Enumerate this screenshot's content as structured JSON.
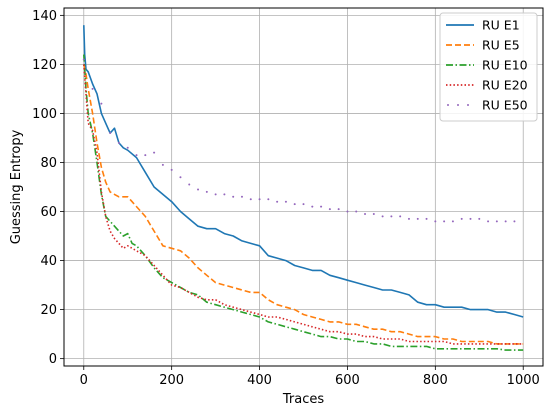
{
  "chart_data": {
    "type": "line",
    "title": "",
    "xlabel": "Traces",
    "ylabel": "Guessing Entropy",
    "xlim": [
      -45,
      1045
    ],
    "ylim": [
      -3,
      143
    ],
    "xticks": [
      0,
      200,
      400,
      600,
      800,
      1000
    ],
    "yticks": [
      0,
      20,
      40,
      60,
      80,
      100,
      120,
      140
    ],
    "grid": true,
    "legend_position": "top-right",
    "series": [
      {
        "name": "RU E1",
        "color": "#1f77b4",
        "line_style": "solid",
        "points": [
          [
            0,
            136
          ],
          [
            2,
            124
          ],
          [
            5,
            118
          ],
          [
            10,
            117
          ],
          [
            20,
            112
          ],
          [
            30,
            108
          ],
          [
            40,
            100
          ],
          [
            50,
            96
          ],
          [
            60,
            92
          ],
          [
            70,
            94
          ],
          [
            80,
            88
          ],
          [
            90,
            86
          ],
          [
            100,
            85
          ],
          [
            120,
            82
          ],
          [
            140,
            76
          ],
          [
            160,
            70
          ],
          [
            180,
            67
          ],
          [
            200,
            64
          ],
          [
            220,
            60
          ],
          [
            240,
            57
          ],
          [
            260,
            54
          ],
          [
            280,
            53
          ],
          [
            300,
            53
          ],
          [
            320,
            51
          ],
          [
            340,
            50
          ],
          [
            360,
            48
          ],
          [
            380,
            47
          ],
          [
            400,
            46
          ],
          [
            420,
            42
          ],
          [
            440,
            41
          ],
          [
            460,
            40
          ],
          [
            480,
            38
          ],
          [
            500,
            37
          ],
          [
            520,
            36
          ],
          [
            540,
            36
          ],
          [
            560,
            34
          ],
          [
            580,
            33
          ],
          [
            600,
            32
          ],
          [
            620,
            31
          ],
          [
            640,
            30
          ],
          [
            660,
            29
          ],
          [
            680,
            28
          ],
          [
            700,
            28
          ],
          [
            720,
            27
          ],
          [
            740,
            26
          ],
          [
            760,
            23
          ],
          [
            780,
            22
          ],
          [
            800,
            22
          ],
          [
            820,
            21
          ],
          [
            840,
            21
          ],
          [
            860,
            21
          ],
          [
            880,
            20
          ],
          [
            900,
            20
          ],
          [
            920,
            20
          ],
          [
            940,
            19
          ],
          [
            960,
            19
          ],
          [
            980,
            18
          ],
          [
            1000,
            17
          ]
        ]
      },
      {
        "name": "RU E5",
        "color": "#ff7f0e",
        "line_style": "dashed",
        "points": [
          [
            0,
            120
          ],
          [
            5,
            116
          ],
          [
            10,
            110
          ],
          [
            20,
            100
          ],
          [
            30,
            88
          ],
          [
            40,
            78
          ],
          [
            50,
            72
          ],
          [
            60,
            68
          ],
          [
            70,
            67
          ],
          [
            80,
            66
          ],
          [
            90,
            66
          ],
          [
            100,
            66
          ],
          [
            110,
            64
          ],
          [
            120,
            62
          ],
          [
            140,
            58
          ],
          [
            160,
            52
          ],
          [
            180,
            46
          ],
          [
            200,
            45
          ],
          [
            220,
            44
          ],
          [
            240,
            41
          ],
          [
            260,
            37
          ],
          [
            280,
            34
          ],
          [
            300,
            31
          ],
          [
            320,
            30
          ],
          [
            340,
            29
          ],
          [
            360,
            28
          ],
          [
            380,
            27
          ],
          [
            400,
            27
          ],
          [
            420,
            24
          ],
          [
            440,
            22
          ],
          [
            460,
            21
          ],
          [
            480,
            20
          ],
          [
            500,
            18
          ],
          [
            520,
            17
          ],
          [
            540,
            16
          ],
          [
            560,
            15
          ],
          [
            580,
            15
          ],
          [
            600,
            14
          ],
          [
            620,
            14
          ],
          [
            640,
            13
          ],
          [
            660,
            12
          ],
          [
            680,
            12
          ],
          [
            700,
            11
          ],
          [
            720,
            11
          ],
          [
            740,
            10
          ],
          [
            760,
            9
          ],
          [
            780,
            9
          ],
          [
            800,
            9
          ],
          [
            820,
            8
          ],
          [
            840,
            8
          ],
          [
            860,
            7
          ],
          [
            880,
            7
          ],
          [
            900,
            7
          ],
          [
            920,
            7
          ],
          [
            940,
            6
          ],
          [
            960,
            6
          ],
          [
            980,
            6
          ],
          [
            1000,
            6
          ]
        ]
      },
      {
        "name": "RU E10",
        "color": "#2ca02c",
        "line_style": "dashdot",
        "points": [
          [
            0,
            124
          ],
          [
            5,
            110
          ],
          [
            10,
            100
          ],
          [
            20,
            92
          ],
          [
            30,
            80
          ],
          [
            40,
            67
          ],
          [
            50,
            58
          ],
          [
            60,
            56
          ],
          [
            70,
            54
          ],
          [
            80,
            52
          ],
          [
            90,
            50
          ],
          [
            100,
            51
          ],
          [
            110,
            47
          ],
          [
            120,
            46
          ],
          [
            140,
            42
          ],
          [
            160,
            37
          ],
          [
            180,
            33
          ],
          [
            200,
            31
          ],
          [
            220,
            29
          ],
          [
            240,
            27
          ],
          [
            260,
            26
          ],
          [
            280,
            23
          ],
          [
            300,
            22
          ],
          [
            320,
            21
          ],
          [
            340,
            20
          ],
          [
            360,
            19
          ],
          [
            380,
            18
          ],
          [
            400,
            17
          ],
          [
            420,
            15
          ],
          [
            440,
            14
          ],
          [
            460,
            13
          ],
          [
            480,
            12
          ],
          [
            500,
            11
          ],
          [
            520,
            10
          ],
          [
            540,
            9
          ],
          [
            560,
            9
          ],
          [
            580,
            8
          ],
          [
            600,
            8
          ],
          [
            620,
            7
          ],
          [
            640,
            7
          ],
          [
            660,
            6
          ],
          [
            680,
            6
          ],
          [
            700,
            5
          ],
          [
            720,
            5
          ],
          [
            740,
            5
          ],
          [
            760,
            5
          ],
          [
            780,
            5
          ],
          [
            800,
            4
          ],
          [
            820,
            4
          ],
          [
            840,
            4
          ],
          [
            860,
            4
          ],
          [
            880,
            4
          ],
          [
            900,
            4
          ],
          [
            920,
            4
          ],
          [
            940,
            4
          ],
          [
            960,
            3.5
          ],
          [
            980,
            3.5
          ],
          [
            1000,
            3.5
          ]
        ]
      },
      {
        "name": "RU E20",
        "color": "#d62728",
        "line_style": "dotted",
        "points": [
          [
            0,
            120
          ],
          [
            5,
            108
          ],
          [
            10,
            96
          ],
          [
            20,
            93
          ],
          [
            30,
            84
          ],
          [
            40,
            68
          ],
          [
            50,
            58
          ],
          [
            60,
            52
          ],
          [
            70,
            49
          ],
          [
            80,
            47
          ],
          [
            90,
            45
          ],
          [
            100,
            46
          ],
          [
            110,
            45
          ],
          [
            120,
            44
          ],
          [
            140,
            42
          ],
          [
            160,
            38
          ],
          [
            180,
            34
          ],
          [
            200,
            30
          ],
          [
            220,
            29
          ],
          [
            240,
            27
          ],
          [
            260,
            25
          ],
          [
            280,
            24
          ],
          [
            300,
            24
          ],
          [
            320,
            22
          ],
          [
            340,
            21
          ],
          [
            360,
            20
          ],
          [
            380,
            19
          ],
          [
            400,
            18
          ],
          [
            420,
            17
          ],
          [
            440,
            17
          ],
          [
            460,
            16
          ],
          [
            480,
            15
          ],
          [
            500,
            14
          ],
          [
            520,
            13
          ],
          [
            540,
            12
          ],
          [
            560,
            11
          ],
          [
            580,
            11
          ],
          [
            600,
            10
          ],
          [
            620,
            10
          ],
          [
            640,
            9
          ],
          [
            660,
            9
          ],
          [
            680,
            8
          ],
          [
            700,
            8
          ],
          [
            720,
            8
          ],
          [
            740,
            7
          ],
          [
            760,
            7
          ],
          [
            780,
            7
          ],
          [
            800,
            7
          ],
          [
            820,
            7
          ],
          [
            840,
            6
          ],
          [
            860,
            6
          ],
          [
            880,
            6
          ],
          [
            900,
            6
          ],
          [
            920,
            6
          ],
          [
            940,
            6
          ],
          [
            960,
            6
          ],
          [
            980,
            6
          ],
          [
            1000,
            6
          ]
        ]
      },
      {
        "name": "RU E50",
        "color": "#9467bd",
        "line_style": "sparse-dots",
        "points": [
          [
            0,
            122
          ],
          [
            20,
            110
          ],
          [
            40,
            104
          ],
          [
            60,
            92
          ],
          [
            80,
            88
          ],
          [
            100,
            86
          ],
          [
            120,
            83
          ],
          [
            140,
            83
          ],
          [
            160,
            84
          ],
          [
            180,
            79
          ],
          [
            200,
            77
          ],
          [
            220,
            74
          ],
          [
            240,
            71
          ],
          [
            260,
            69
          ],
          [
            280,
            68
          ],
          [
            300,
            67
          ],
          [
            320,
            67
          ],
          [
            340,
            66
          ],
          [
            360,
            66
          ],
          [
            380,
            65
          ],
          [
            400,
            65
          ],
          [
            420,
            65
          ],
          [
            440,
            64
          ],
          [
            460,
            64
          ],
          [
            480,
            63
          ],
          [
            500,
            63
          ],
          [
            520,
            62
          ],
          [
            540,
            62
          ],
          [
            560,
            61
          ],
          [
            580,
            61
          ],
          [
            600,
            60
          ],
          [
            620,
            60
          ],
          [
            640,
            59
          ],
          [
            660,
            59
          ],
          [
            680,
            58
          ],
          [
            700,
            58
          ],
          [
            720,
            58
          ],
          [
            740,
            57
          ],
          [
            760,
            57
          ],
          [
            780,
            57
          ],
          [
            800,
            56
          ],
          [
            820,
            56
          ],
          [
            840,
            56
          ],
          [
            860,
            57
          ],
          [
            880,
            57
          ],
          [
            900,
            57
          ],
          [
            920,
            56
          ],
          [
            940,
            56
          ],
          [
            960,
            56
          ],
          [
            980,
            56
          ]
        ]
      }
    ]
  }
}
